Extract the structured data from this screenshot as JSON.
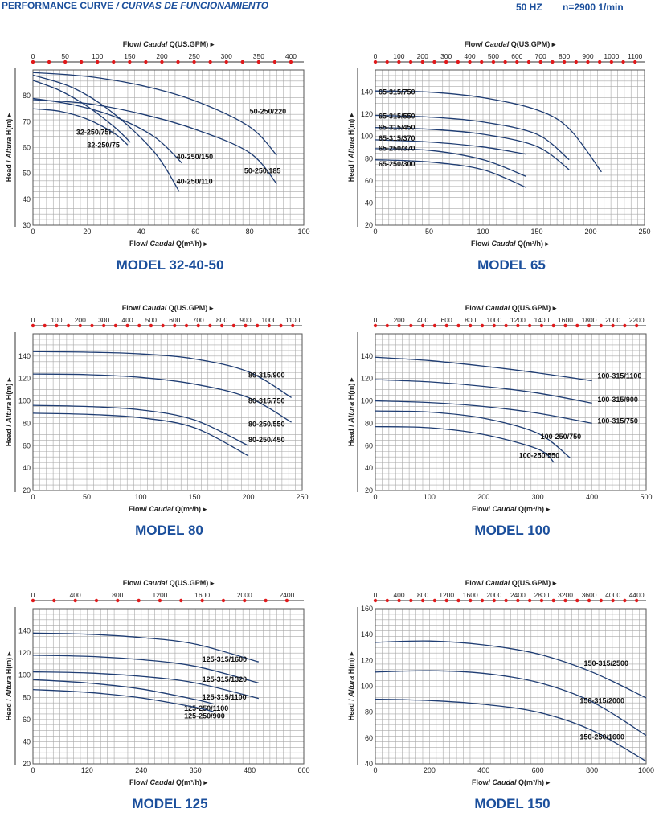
{
  "header": {
    "title": "PERFORMANCE CURVE",
    "title_es": "/ CURVAS DE FUNCIONAMIENTO",
    "frequency": "50 HZ",
    "speed": "n=2900 1/min"
  },
  "labels": {
    "flow_en": "Flow/",
    "flow_es": "Caudal",
    "top_unit": "Q(US.GPM)",
    "bottom_unit": "Q(m³/h)",
    "head_en": "Head /",
    "head_es": "Altura",
    "head_unit": "H(m)"
  },
  "colors": {
    "title": "#1b4f9c",
    "curve": "#1f3d73",
    "grid": "#a9a9a9",
    "marker": "#e0191b"
  },
  "chart_data": [
    {
      "type": "line",
      "title": "MODEL 32-40-50",
      "xlim": [
        0,
        100
      ],
      "ylim": [
        30,
        90
      ],
      "xticks": [
        0,
        20,
        40,
        60,
        80,
        100
      ],
      "yticks": [
        30,
        40,
        50,
        60,
        70,
        80
      ],
      "gpm_ticks": [
        0,
        50,
        100,
        150,
        200,
        250,
        300,
        350,
        400
      ],
      "grid": true,
      "series": [
        {
          "name": "50-250/220",
          "x": [
            0,
            20,
            40,
            60,
            80,
            90
          ],
          "y": [
            89,
            87.5,
            84,
            78,
            68,
            57
          ]
        },
        {
          "name": "50-250/185",
          "x": [
            0,
            20,
            40,
            60,
            80,
            90
          ],
          "y": [
            78.5,
            77,
            73,
            67,
            58,
            46
          ]
        },
        {
          "name": "40-250/150",
          "x": [
            0,
            15,
            30,
            45,
            55
          ],
          "y": [
            79,
            76.5,
            72,
            64,
            54
          ]
        },
        {
          "name": "40-250/110",
          "x": [
            0,
            15,
            30,
            45,
            54
          ],
          "y": [
            88,
            83,
            73,
            58,
            43
          ]
        },
        {
          "name": "32-250/75H",
          "x": [
            0,
            10,
            20,
            30,
            36
          ],
          "y": [
            86,
            82,
            76,
            68,
            62
          ]
        },
        {
          "name": "32-250/75",
          "x": [
            0,
            10,
            20,
            30,
            35
          ],
          "y": [
            75,
            74,
            71,
            65.5,
            61
          ]
        }
      ]
    },
    {
      "type": "line",
      "title": "MODEL 65",
      "xlim": [
        0,
        250
      ],
      "ylim": [
        20,
        160
      ],
      "xticks": [
        0,
        50,
        100,
        150,
        200,
        250
      ],
      "yticks": [
        20,
        40,
        60,
        80,
        100,
        120,
        140
      ],
      "gpm_ticks": [
        0,
        100,
        200,
        300,
        400,
        500,
        600,
        700,
        800,
        900,
        1000,
        1100
      ],
      "grid": true,
      "series": [
        {
          "name": "65-315/750",
          "x": [
            0,
            50,
            100,
            150,
            180,
            210
          ],
          "y": [
            141,
            140,
            135,
            124,
            107,
            68
          ]
        },
        {
          "name": "65-315/550",
          "x": [
            0,
            50,
            100,
            150,
            180
          ],
          "y": [
            119,
            117.5,
            113,
            102,
            79
          ]
        },
        {
          "name": "65-315/450",
          "x": [
            0,
            50,
            100,
            150,
            180
          ],
          "y": [
            108,
            106.5,
            102,
            91,
            70
          ]
        },
        {
          "name": "65-315/370",
          "x": [
            0,
            50,
            100,
            140
          ],
          "y": [
            97,
            95,
            90.5,
            84
          ]
        },
        {
          "name": "65-250/370",
          "x": [
            0,
            50,
            100,
            140
          ],
          "y": [
            89,
            87.5,
            79,
            64
          ]
        },
        {
          "name": "65-250/300",
          "x": [
            0,
            50,
            100,
            140
          ],
          "y": [
            79,
            77,
            70,
            54
          ]
        }
      ]
    },
    {
      "type": "line",
      "title": "MODEL 80",
      "xlim": [
        0,
        250
      ],
      "ylim": [
        20,
        160
      ],
      "xticks": [
        0,
        50,
        100,
        150,
        200,
        250
      ],
      "yticks": [
        20,
        40,
        60,
        80,
        100,
        120,
        140
      ],
      "gpm_ticks": [
        0,
        100,
        200,
        300,
        400,
        500,
        600,
        700,
        800,
        900,
        1000,
        1100
      ],
      "grid": true,
      "series": [
        {
          "name": "80-315/900",
          "x": [
            0,
            50,
            100,
            150,
            200,
            240
          ],
          "y": [
            144,
            143.5,
            142,
            137.5,
            126,
            103
          ]
        },
        {
          "name": "80-315/750",
          "x": [
            0,
            50,
            100,
            150,
            200,
            240
          ],
          "y": [
            124,
            123.5,
            121,
            115,
            103,
            81
          ]
        },
        {
          "name": "80-250/550",
          "x": [
            0,
            50,
            100,
            150,
            200
          ],
          "y": [
            96,
            95,
            92,
            83,
            60
          ]
        },
        {
          "name": "80-250/450",
          "x": [
            0,
            50,
            100,
            150,
            200
          ],
          "y": [
            89,
            88,
            85,
            76,
            51
          ]
        }
      ]
    },
    {
      "type": "line",
      "title": "MODEL 100",
      "xlim": [
        0,
        500
      ],
      "ylim": [
        20,
        160
      ],
      "xticks": [
        0,
        100,
        200,
        300,
        400,
        500
      ],
      "yticks": [
        20,
        40,
        60,
        80,
        100,
        120,
        140
      ],
      "gpm_ticks": [
        0,
        200,
        400,
        600,
        800,
        1000,
        1200,
        1400,
        1600,
        1800,
        2000,
        2200
      ],
      "grid": true,
      "series": [
        {
          "name": "100-315/1100",
          "x": [
            0,
            100,
            200,
            300,
            400
          ],
          "y": [
            139,
            136,
            131,
            125,
            118
          ]
        },
        {
          "name": "100-315/900",
          "x": [
            0,
            100,
            200,
            300,
            400
          ],
          "y": [
            119,
            117,
            113,
            107,
            98
          ]
        },
        {
          "name": "100-315/750",
          "x": [
            0,
            100,
            200,
            300,
            400
          ],
          "y": [
            100,
            98.5,
            95,
            89,
            80
          ]
        },
        {
          "name": "100-250/750",
          "x": [
            0,
            100,
            200,
            300,
            360
          ],
          "y": [
            91,
            90,
            84.5,
            71,
            49
          ]
        },
        {
          "name": "100-250/550",
          "x": [
            0,
            100,
            200,
            300,
            330
          ],
          "y": [
            77,
            76,
            70,
            57,
            45
          ]
        }
      ]
    },
    {
      "type": "line",
      "title": "MODEL 125",
      "xlim": [
        0,
        600
      ],
      "ylim": [
        20,
        160
      ],
      "xticks": [
        0,
        120,
        240,
        360,
        480,
        600
      ],
      "yticks": [
        20,
        40,
        60,
        80,
        100,
        120,
        140
      ],
      "gpm_ticks": [
        0,
        400,
        800,
        1200,
        1600,
        2000,
        2400
      ],
      "grid": true,
      "series": [
        {
          "name": "125-315/1600",
          "x": [
            0,
            120,
            240,
            360,
            500
          ],
          "y": [
            138,
            137,
            134,
            128,
            112
          ]
        },
        {
          "name": "125-315/1320",
          "x": [
            0,
            120,
            240,
            360,
            500
          ],
          "y": [
            118,
            117,
            114,
            108,
            93
          ]
        },
        {
          "name": "125-315/1100",
          "x": [
            0,
            120,
            240,
            360,
            500
          ],
          "y": [
            103,
            102,
            99,
            93,
            79
          ]
        },
        {
          "name": "125-250/1100",
          "x": [
            0,
            120,
            240,
            360,
            400
          ],
          "y": [
            96,
            93,
            87.5,
            78,
            74
          ]
        },
        {
          "name": "125-250/900",
          "x": [
            0,
            120,
            240,
            360,
            400
          ],
          "y": [
            87,
            84.5,
            79.5,
            71,
            67
          ]
        }
      ]
    },
    {
      "type": "line",
      "title": "MODEL 150",
      "xlim": [
        0,
        1000
      ],
      "ylim": [
        40,
        160
      ],
      "xticks": [
        0,
        200,
        400,
        600,
        800,
        1000
      ],
      "yticks": [
        40,
        60,
        80,
        100,
        120,
        140,
        160
      ],
      "gpm_ticks": [
        0,
        400,
        800,
        1200,
        1600,
        2000,
        2400,
        2800,
        3200,
        3600,
        4000,
        4400
      ],
      "grid": true,
      "series": [
        {
          "name": "150-315/2500",
          "x": [
            0,
            200,
            400,
            600,
            800,
            1000
          ],
          "y": [
            134,
            135,
            132,
            125,
            111,
            91
          ]
        },
        {
          "name": "150-315/2000",
          "x": [
            0,
            200,
            400,
            600,
            800,
            1000
          ],
          "y": [
            111,
            112,
            110,
            103,
            88,
            62
          ]
        },
        {
          "name": "150-250/1600",
          "x": [
            0,
            200,
            400,
            600,
            800,
            1000
          ],
          "y": [
            90,
            89,
            86,
            80,
            66,
            42
          ]
        }
      ]
    }
  ]
}
